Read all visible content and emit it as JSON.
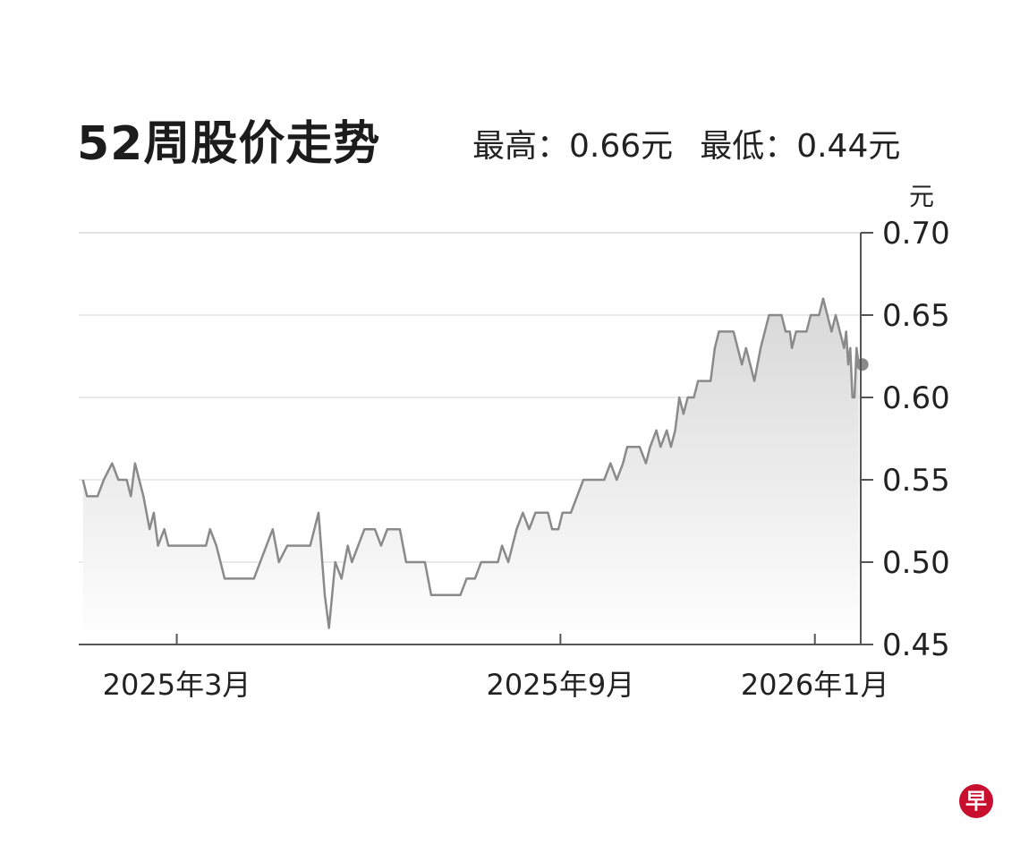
{
  "header": {
    "title": "52周股价走势",
    "high_label": "最高：",
    "high_value": "0.66元",
    "low_label": "最低：",
    "low_value": "0.44元"
  },
  "logo": {
    "text": "早"
  },
  "colors": {
    "line": "#8a8a8a",
    "fill_top": "#d8d8d8",
    "fill_bottom": "#ffffff",
    "grid": "#e4e4e4",
    "axis": "#555555",
    "logo": "#c8102e"
  },
  "chart_data": {
    "type": "line",
    "title": "52周股价走势",
    "ylabel": "元",
    "ylim": [
      0.45,
      0.7
    ],
    "yticks": [
      0.45,
      0.5,
      0.55,
      0.6,
      0.65,
      0.7
    ],
    "ytick_labels": [
      "0.45",
      "0.50",
      "0.55",
      "0.60",
      "0.65",
      "0.70"
    ],
    "xlim": [
      "2025-01-13",
      "2026-01-23"
    ],
    "xticks": [
      "2025-03-01",
      "2025-09-01",
      "2026-01-01"
    ],
    "xtick_labels": [
      "2025年3月",
      "2025年9月",
      "2026年1月"
    ],
    "grid": true,
    "series": [
      {
        "values": [
          [
            "2025-01-15",
            0.55
          ],
          [
            "2025-01-17",
            0.54
          ],
          [
            "2025-01-22",
            0.54
          ],
          [
            "2025-01-25",
            0.55
          ],
          [
            "2025-01-29",
            0.56
          ],
          [
            "2025-02-01",
            0.55
          ],
          [
            "2025-02-05",
            0.55
          ],
          [
            "2025-02-07",
            0.54
          ],
          [
            "2025-02-09",
            0.56
          ],
          [
            "2025-02-13",
            0.54
          ],
          [
            "2025-02-16",
            0.52
          ],
          [
            "2025-02-18",
            0.53
          ],
          [
            "2025-02-20",
            0.51
          ],
          [
            "2025-02-23",
            0.52
          ],
          [
            "2025-02-25",
            0.51
          ],
          [
            "2025-03-15",
            0.51
          ],
          [
            "2025-03-17",
            0.52
          ],
          [
            "2025-03-20",
            0.51
          ],
          [
            "2025-03-24",
            0.49
          ],
          [
            "2025-04-07",
            0.49
          ],
          [
            "2025-04-13",
            0.51
          ],
          [
            "2025-04-16",
            0.52
          ],
          [
            "2025-04-19",
            0.5
          ],
          [
            "2025-04-23",
            0.51
          ],
          [
            "2025-05-04",
            0.51
          ],
          [
            "2025-05-08",
            0.53
          ],
          [
            "2025-05-11",
            0.48
          ],
          [
            "2025-05-13",
            0.46
          ],
          [
            "2025-05-16",
            0.5
          ],
          [
            "2025-05-19",
            0.49
          ],
          [
            "2025-05-22",
            0.51
          ],
          [
            "2025-05-24",
            0.5
          ],
          [
            "2025-05-27",
            0.51
          ],
          [
            "2025-05-30",
            0.52
          ],
          [
            "2025-06-04",
            0.52
          ],
          [
            "2025-06-07",
            0.51
          ],
          [
            "2025-06-10",
            0.52
          ],
          [
            "2025-06-16",
            0.52
          ],
          [
            "2025-06-19",
            0.5
          ],
          [
            "2025-06-28",
            0.5
          ],
          [
            "2025-07-01",
            0.48
          ],
          [
            "2025-07-15",
            0.48
          ],
          [
            "2025-07-18",
            0.49
          ],
          [
            "2025-07-22",
            0.49
          ],
          [
            "2025-07-25",
            0.5
          ],
          [
            "2025-08-02",
            0.5
          ],
          [
            "2025-08-04",
            0.51
          ],
          [
            "2025-08-07",
            0.5
          ],
          [
            "2025-08-11",
            0.52
          ],
          [
            "2025-08-14",
            0.53
          ],
          [
            "2025-08-17",
            0.52
          ],
          [
            "2025-08-20",
            0.53
          ],
          [
            "2025-08-26",
            0.53
          ],
          [
            "2025-08-28",
            0.52
          ],
          [
            "2025-08-31",
            0.52
          ],
          [
            "2025-09-02",
            0.53
          ],
          [
            "2025-09-06",
            0.53
          ],
          [
            "2025-09-09",
            0.54
          ],
          [
            "2025-09-12",
            0.55
          ],
          [
            "2025-09-22",
            0.55
          ],
          [
            "2025-09-25",
            0.56
          ],
          [
            "2025-09-28",
            0.55
          ],
          [
            "2025-10-01",
            0.56
          ],
          [
            "2025-10-03",
            0.57
          ],
          [
            "2025-10-09",
            0.57
          ],
          [
            "2025-10-12",
            0.56
          ],
          [
            "2025-10-14",
            0.57
          ],
          [
            "2025-10-17",
            0.58
          ],
          [
            "2025-10-19",
            0.57
          ],
          [
            "2025-10-22",
            0.58
          ],
          [
            "2025-10-24",
            0.57
          ],
          [
            "2025-10-26",
            0.58
          ],
          [
            "2025-10-28",
            0.6
          ],
          [
            "2025-10-30",
            0.59
          ],
          [
            "2025-11-01",
            0.6
          ],
          [
            "2025-11-04",
            0.6
          ],
          [
            "2025-11-06",
            0.61
          ],
          [
            "2025-11-12",
            0.61
          ],
          [
            "2025-11-14",
            0.63
          ],
          [
            "2025-11-16",
            0.64
          ],
          [
            "2025-11-23",
            0.64
          ],
          [
            "2025-11-25",
            0.63
          ],
          [
            "2025-11-27",
            0.62
          ],
          [
            "2025-11-29",
            0.63
          ],
          [
            "2025-12-01",
            0.62
          ],
          [
            "2025-12-03",
            0.61
          ],
          [
            "2025-12-06",
            0.63
          ],
          [
            "2025-12-10",
            0.65
          ],
          [
            "2025-12-16",
            0.65
          ],
          [
            "2025-12-18",
            0.64
          ],
          [
            "2025-12-20",
            0.64
          ],
          [
            "2025-12-21",
            0.63
          ],
          [
            "2025-12-23",
            0.64
          ],
          [
            "2025-12-28",
            0.64
          ],
          [
            "2025-12-30",
            0.65
          ],
          [
            "2026-01-03",
            0.65
          ],
          [
            "2026-01-05",
            0.66
          ],
          [
            "2026-01-07",
            0.65
          ],
          [
            "2026-01-09",
            0.64
          ],
          [
            "2026-01-11",
            0.65
          ],
          [
            "2026-01-13",
            0.64
          ],
          [
            "2026-01-15",
            0.63
          ],
          [
            "2026-01-16",
            0.64
          ],
          [
            "2026-01-17",
            0.62
          ],
          [
            "2026-01-18",
            0.63
          ],
          [
            "2026-01-19",
            0.6
          ],
          [
            "2026-01-20",
            0.6
          ],
          [
            "2026-01-21",
            0.63
          ],
          [
            "2026-01-22",
            0.62
          ]
        ]
      }
    ]
  }
}
